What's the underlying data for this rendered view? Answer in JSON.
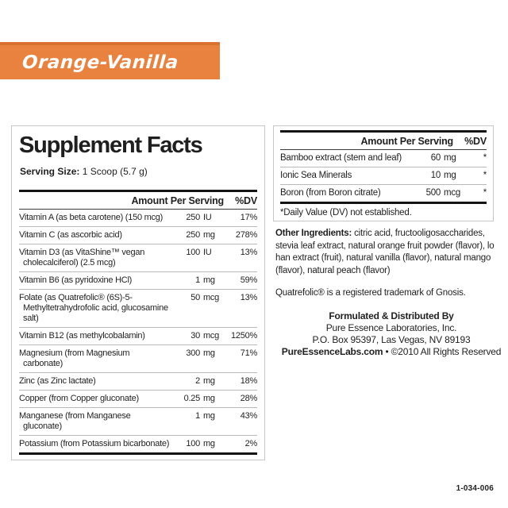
{
  "colors": {
    "banner_orange": "#E8823E",
    "banner_edge_orange": "#D9722E",
    "rule_dark": "#141414",
    "rule_light": "#B9B9B9"
  },
  "flavor": {
    "name": "Orange-Vanilla"
  },
  "main_panel": {
    "title": "Supplement Facts",
    "serving_size_label": "Serving Size:",
    "serving_size_value": "1 Scoop (5.7 g)",
    "columns": {
      "amount": "Amount Per Serving",
      "dv": "%DV"
    },
    "rows": [
      {
        "name": "Vitamin A (as beta carotene) (150 mcg)",
        "value": "250",
        "unit": "IU",
        "dv": "17%"
      },
      {
        "name": "Vitamin C (as ascorbic acid)",
        "value": "250",
        "unit": "mg",
        "dv": "278%"
      },
      {
        "name": "Vitamin D3 (as VitaShine™ vegan cholecalciferol) (2.5 mcg)",
        "value": "100",
        "unit": "IU",
        "dv": "13%"
      },
      {
        "name": "Vitamin B6 (as pyridoxine HCl)",
        "value": "1",
        "unit": "mg",
        "dv": "59%"
      },
      {
        "name": "Folate (as Quatrefolic® (6S)-5-Methyltetrahydrofolic acid, glucosamine salt)",
        "value": "50",
        "unit": "mcg",
        "dv": "13%"
      },
      {
        "name": "Vitamin B12 (as methylcobalamin)",
        "value": "30",
        "unit": "mcg",
        "dv": "1250%"
      },
      {
        "name": "Magnesium (from Magnesium carbonate)",
        "value": "300",
        "unit": "mg",
        "dv": "71%"
      },
      {
        "name": "Zinc (as Zinc lactate)",
        "value": "2",
        "unit": "mg",
        "dv": "18%"
      },
      {
        "name": "Copper (from Copper gluconate)",
        "value": "0.25",
        "unit": "mg",
        "dv": "28%"
      },
      {
        "name": "Manganese (from Manganese gluconate)",
        "value": "1",
        "unit": "mg",
        "dv": "43%"
      },
      {
        "name": "Potassium (from Potassium bicarbonate)",
        "value": "100",
        "unit": "mg",
        "dv": "2%"
      }
    ]
  },
  "side_panel": {
    "columns": {
      "amount": "Amount Per Serving",
      "dv": "%DV"
    },
    "rows": [
      {
        "name": "Bamboo extract (stem and leaf)",
        "value": "60",
        "unit": "mg",
        "dv": "*"
      },
      {
        "name": "Ionic Sea Minerals",
        "value": "10",
        "unit": "mg",
        "dv": "*"
      },
      {
        "name": "Boron (from Boron citrate)",
        "value": "500",
        "unit": "mcg",
        "dv": "*"
      }
    ],
    "footnote": "*Daily Value (DV) not established."
  },
  "other_ingredients": {
    "label": "Other Ingredients:",
    "text": " citric acid, fructooligosaccharides, stevia leaf extract, natural orange fruit powder (flavor), lo han extract (fruit), natural vanilla (flavor), natural mango (flavor), natural peach (flavor)"
  },
  "trademark_note": "Quatrefolic® is a registered trademark of Gnosis.",
  "distributor": {
    "heading": "Formulated & Distributed By",
    "company": "Pure Essence Laboratories, Inc.",
    "address": "P.O. Box 95397, Las Vegas, NV 89193",
    "website": "PureEssenceLabs.com",
    "rights": " • ©2010 All Rights Reserved"
  },
  "product_code": "1-034-006"
}
